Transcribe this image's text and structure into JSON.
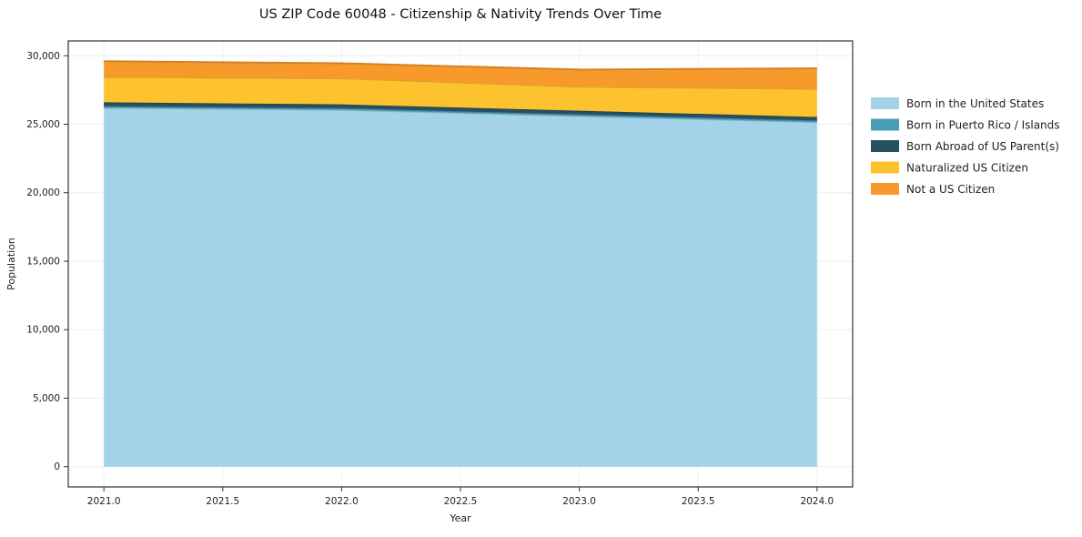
{
  "chart_data": {
    "type": "area",
    "stacked": true,
    "title": "US ZIP Code 60048 - Citizenship & Nativity Trends Over Time",
    "xlabel": "Year",
    "ylabel": "Population",
    "x": [
      2021,
      2022,
      2023,
      2024
    ],
    "series": [
      {
        "name": "Born in the United States",
        "color": "#a3d3e8",
        "values": [
          26200,
          26050,
          25600,
          25150
        ]
      },
      {
        "name": "Born in Puerto Rico / Islands",
        "color": "#4a9db8",
        "values": [
          120,
          120,
          120,
          120
        ]
      },
      {
        "name": "Born Abroad of US Parent(s)",
        "color": "#27505f",
        "values": [
          280,
          280,
          270,
          260
        ]
      },
      {
        "name": "Naturalized US Citizen",
        "color": "#fdc32f",
        "values": [
          1850,
          1900,
          1750,
          2050
        ]
      },
      {
        "name": "Not a US Citizen",
        "color": "#f8992b",
        "values": [
          1150,
          1100,
          1250,
          1500
        ]
      }
    ],
    "xlim": [
      2020.85,
      2024.15
    ],
    "ylim": [
      -1480,
      31080
    ],
    "xticks": {
      "values": [
        2021,
        2021.5,
        2022,
        2022.5,
        2023,
        2023.5,
        2024
      ],
      "labels": [
        "2021.0",
        "2021.5",
        "2022.0",
        "2022.5",
        "2023.0",
        "2023.5",
        "2024.0"
      ]
    },
    "yticks": {
      "values": [
        0,
        5000,
        10000,
        15000,
        20000,
        25000,
        30000
      ],
      "labels": [
        "0",
        "5,000",
        "10,000",
        "15,000",
        "20,000",
        "25,000",
        "30,000"
      ]
    },
    "grid": true,
    "legend_position": "right"
  }
}
